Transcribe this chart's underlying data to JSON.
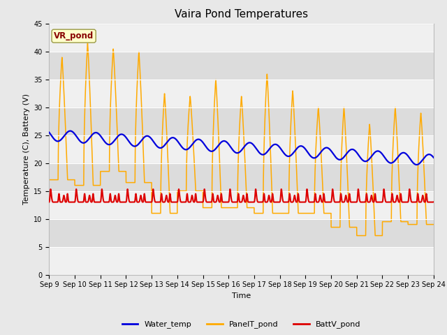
{
  "title": "Vaira Pond Temperatures",
  "xlabel": "Time",
  "ylabel": "Temperature (C), Battery (V)",
  "site_label": "VR_pond",
  "n_days": 15,
  "ylim": [
    0,
    45
  ],
  "yticks": [
    0,
    5,
    10,
    15,
    20,
    25,
    30,
    35,
    40,
    45
  ],
  "xtick_labels": [
    "Sep 9",
    "Sep 10",
    "Sep 11",
    "Sep 12",
    "Sep 13",
    "Sep 14",
    "Sep 15",
    "Sep 16",
    "Sep 17",
    "Sep 18",
    "Sep 19",
    "Sep 20",
    "Sep 21",
    "Sep 22",
    "Sep 23",
    "Sep 24"
  ],
  "water_color": "#0000dd",
  "panel_color": "#ffaa00",
  "batt_color": "#dd0000",
  "bg_color": "#e8e8e8",
  "plot_bg_color": "#f0f0f0",
  "band_color_dark": "#dcdcdc",
  "legend_entries": [
    "Water_temp",
    "PanelT_pond",
    "BattV_pond"
  ],
  "site_label_color": "#880000",
  "site_label_bg": "#ffffcc",
  "site_label_edge": "#999944",
  "title_fontsize": 11,
  "axis_fontsize": 8,
  "tick_fontsize": 7,
  "legend_fontsize": 8
}
